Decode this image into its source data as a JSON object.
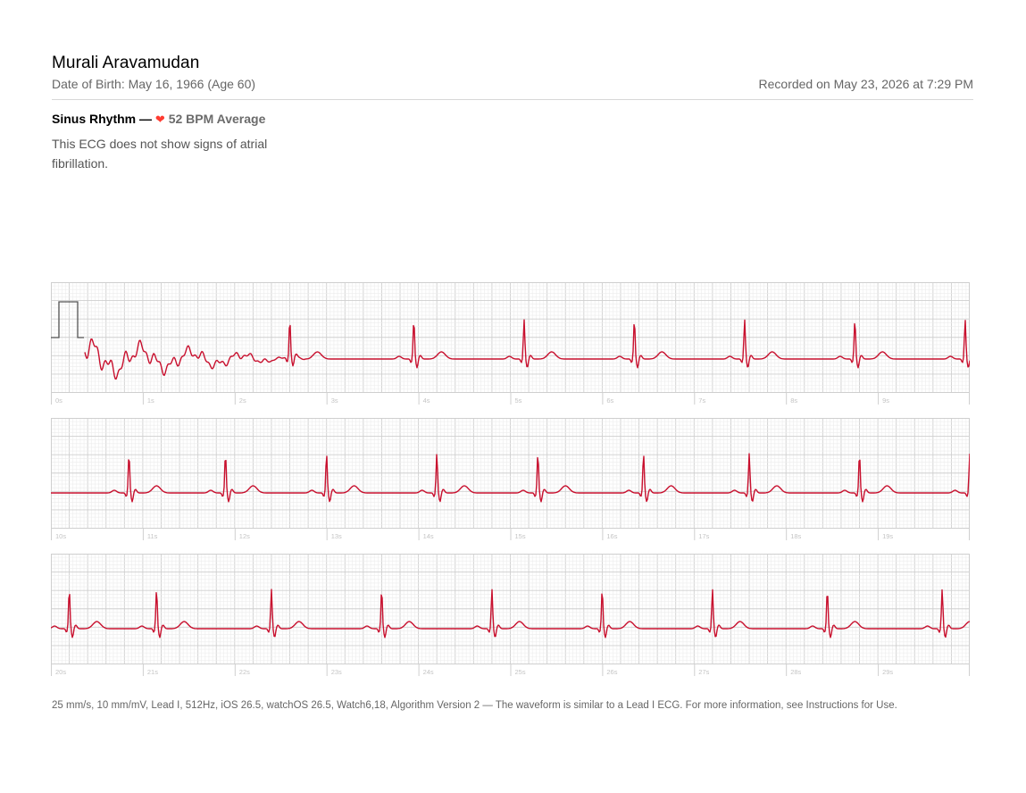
{
  "patient": {
    "name": "Murali Aravamudan",
    "dob": "Date of Birth: May 16, 1966 (Age 60)",
    "recorded": "Recorded on May 23, 2026 at 7:29 PM"
  },
  "result": {
    "classification": "Sinus Rhythm —",
    "heart_icon": "heart-icon",
    "heart_glyph": "❤",
    "bpm": "52 BPM Average",
    "summary": "This ECG does not show signs of atrial fibrillation."
  },
  "strips": [
    {
      "labels": [
        "0s",
        "1s",
        "2s",
        "3s",
        "4s",
        "5s",
        "6s",
        "7s",
        "8s",
        "9s"
      ]
    },
    {
      "labels": [
        "10s",
        "11s",
        "12s",
        "13s",
        "14s",
        "15s",
        "16s",
        "17s",
        "18s",
        "19s"
      ]
    },
    {
      "labels": [
        "20s",
        "21s",
        "22s",
        "23s",
        "24s",
        "25s",
        "26s",
        "27s",
        "28s",
        "29s"
      ]
    }
  ],
  "beats_seconds": [
    [
      2.6,
      3.95,
      5.15,
      6.35,
      7.55,
      8.75,
      9.95
    ],
    [
      10.85,
      11.9,
      13.0,
      14.2,
      15.3,
      16.45,
      17.6,
      18.8,
      20.0
    ],
    [
      20.2,
      21.15,
      22.4,
      23.6,
      24.8,
      26.0,
      27.2,
      28.45,
      29.7
    ]
  ],
  "footer": "25 mm/s, 10 mm/mV, Lead I, 512Hz, iOS 26.5, watchOS 26.5, Watch6,18, Algorithm Version 2 — The waveform is similar to a Lead I ECG. For more information, see Instructions for Use.",
  "colors": {
    "trace": "#c8102e",
    "grid_minor": "#ececec",
    "grid_major": "#cfcfcf",
    "label": "#c4c4c4"
  }
}
